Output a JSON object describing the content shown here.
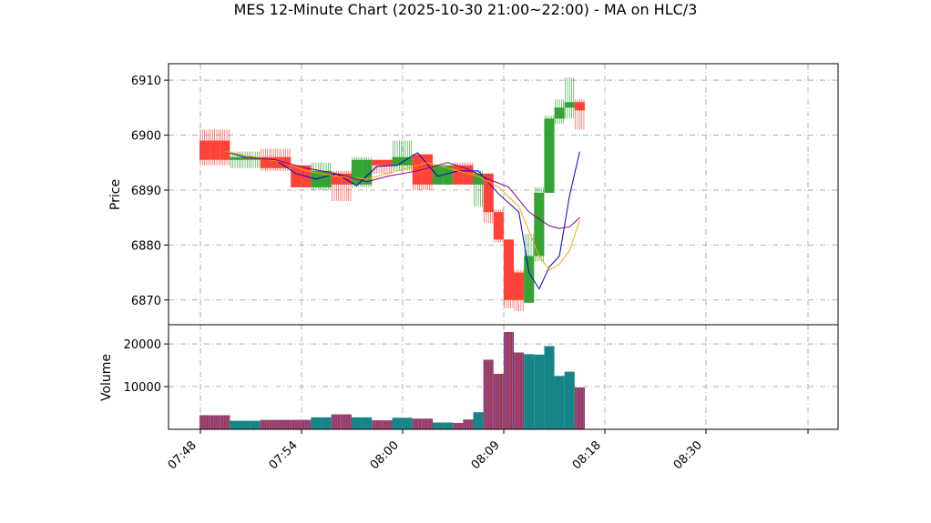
{
  "chart_data": {
    "title": "MES 12-Minute Chart (2025-10-30 21:00~22:00) - MA on HLC/3",
    "type": "candlestick",
    "x_tick_labels": [
      "07:48",
      "07:54",
      "08:00",
      "08:09",
      "08:18",
      "08:30",
      ""
    ],
    "price_panel": {
      "ylabel": "Price",
      "ylim": [
        6865.5,
        6913
      ],
      "yticks": [
        6870,
        6880,
        6890,
        6900,
        6910
      ],
      "grid": true,
      "candles": [
        {
          "o": 6899.0,
          "h": 6901.0,
          "l": 6894.5,
          "c": 6895.5,
          "dir": "down"
        },
        {
          "o": 6899.0,
          "h": 6901.0,
          "l": 6894.5,
          "c": 6895.5,
          "dir": "down"
        },
        {
          "o": 6899.0,
          "h": 6901.0,
          "l": 6894.5,
          "c": 6895.5,
          "dir": "down"
        },
        {
          "o": 6896.0,
          "h": 6897.0,
          "l": 6894.0,
          "c": 6895.5,
          "dir": "up"
        },
        {
          "o": 6896.0,
          "h": 6897.0,
          "l": 6894.0,
          "c": 6895.5,
          "dir": "up"
        },
        {
          "o": 6896.0,
          "h": 6897.0,
          "l": 6894.0,
          "c": 6895.5,
          "dir": "up"
        },
        {
          "o": 6896.0,
          "h": 6897.5,
          "l": 6893.5,
          "c": 6894.0,
          "dir": "down"
        },
        {
          "o": 6896.0,
          "h": 6897.5,
          "l": 6893.5,
          "c": 6894.0,
          "dir": "down"
        },
        {
          "o": 6896.0,
          "h": 6897.5,
          "l": 6893.5,
          "c": 6894.0,
          "dir": "down"
        },
        {
          "o": 6894.5,
          "h": 6894.5,
          "l": 6890.5,
          "c": 6890.5,
          "dir": "down"
        },
        {
          "o": 6894.5,
          "h": 6894.5,
          "l": 6890.5,
          "c": 6890.5,
          "dir": "down"
        },
        {
          "o": 6890.5,
          "h": 6895.0,
          "l": 6890.0,
          "c": 6893.5,
          "dir": "up"
        },
        {
          "o": 6890.5,
          "h": 6895.0,
          "l": 6890.0,
          "c": 6893.5,
          "dir": "up"
        },
        {
          "o": 6893.0,
          "h": 6893.5,
          "l": 6888.0,
          "c": 6891.0,
          "dir": "down"
        },
        {
          "o": 6893.0,
          "h": 6893.5,
          "l": 6888.0,
          "c": 6891.0,
          "dir": "down"
        },
        {
          "o": 6891.0,
          "h": 6896.0,
          "l": 6890.5,
          "c": 6895.5,
          "dir": "up"
        },
        {
          "o": 6891.0,
          "h": 6896.0,
          "l": 6890.5,
          "c": 6895.5,
          "dir": "up"
        },
        {
          "o": 6895.5,
          "h": 6895.5,
          "l": 6893.0,
          "c": 6894.5,
          "dir": "down"
        },
        {
          "o": 6895.5,
          "h": 6895.5,
          "l": 6893.0,
          "c": 6894.5,
          "dir": "down"
        },
        {
          "o": 6894.5,
          "h": 6899.0,
          "l": 6893.5,
          "c": 6896.0,
          "dir": "up"
        },
        {
          "o": 6894.5,
          "h": 6899.0,
          "l": 6893.5,
          "c": 6896.0,
          "dir": "up"
        },
        {
          "o": 6896.5,
          "h": 6896.5,
          "l": 6890.0,
          "c": 6891.0,
          "dir": "down"
        },
        {
          "o": 6896.5,
          "h": 6896.5,
          "l": 6890.0,
          "c": 6891.0,
          "dir": "down"
        },
        {
          "o": 6891.0,
          "h": 6894.5,
          "l": 6891.0,
          "c": 6894.5,
          "dir": "up"
        },
        {
          "o": 6891.0,
          "h": 6894.5,
          "l": 6891.0,
          "c": 6894.5,
          "dir": "up"
        },
        {
          "o": 6894.5,
          "h": 6895.0,
          "l": 6891.0,
          "c": 6891.0,
          "dir": "down"
        },
        {
          "o": 6894.5,
          "h": 6895.0,
          "l": 6891.0,
          "c": 6891.0,
          "dir": "down"
        },
        {
          "o": 6891.0,
          "h": 6893.5,
          "l": 6887.0,
          "c": 6893.0,
          "dir": "up"
        },
        {
          "o": 6893.0,
          "h": 6893.0,
          "l": 6884.0,
          "c": 6886.0,
          "dir": "down"
        },
        {
          "o": 6886.0,
          "h": 6886.5,
          "l": 6880.5,
          "c": 6881.0,
          "dir": "down"
        },
        {
          "o": 6881.0,
          "h": 6881.0,
          "l": 6868.5,
          "c": 6870.0,
          "dir": "down"
        },
        {
          "o": 6875.0,
          "h": 6875.5,
          "l": 6868.0,
          "c": 6870.0,
          "dir": "down"
        },
        {
          "o": 6869.5,
          "h": 6882.0,
          "l": 6869.5,
          "c": 6878.0,
          "dir": "up"
        },
        {
          "o": 6878.0,
          "h": 6890.5,
          "l": 6877.0,
          "c": 6889.5,
          "dir": "up"
        },
        {
          "o": 6889.5,
          "h": 6903.5,
          "l": 6889.5,
          "c": 6903.0,
          "dir": "up"
        },
        {
          "o": 6903.0,
          "h": 6906.5,
          "l": 6902.0,
          "c": 6905.0,
          "dir": "up"
        },
        {
          "o": 6905.0,
          "h": 6910.5,
          "l": 6903.0,
          "c": 6906.0,
          "dir": "up"
        },
        {
          "o": 6906.0,
          "h": 6906.5,
          "l": 6901.0,
          "c": 6904.5,
          "dir": "down"
        }
      ],
      "ma_lines": [
        {
          "color": "#0000cc",
          "values": [
            [
              2,
              6897.0
            ],
            [
              4,
              6896.0
            ],
            [
              7,
              6895.5
            ],
            [
              9,
              6893.0
            ],
            [
              11,
              6892.0
            ],
            [
              13,
              6893.0
            ],
            [
              15,
              6890.8
            ],
            [
              17,
              6894.3
            ],
            [
              19,
              6894.5
            ],
            [
              21,
              6896.8
            ],
            [
              23,
              6892.5
            ],
            [
              25,
              6893.5
            ],
            [
              27,
              6893.5
            ],
            [
              29,
              6889.3
            ],
            [
              31,
              6886.0
            ],
            [
              32,
              6875.0
            ],
            [
              33,
              6872.0
            ],
            [
              34,
              6876.0
            ],
            [
              35,
              6878.0
            ],
            [
              36,
              6889.0
            ],
            [
              37,
              6897.0
            ]
          ]
        },
        {
          "color": "#ffa500",
          "values": [
            [
              2,
              6897.0
            ],
            [
              5,
              6896.0
            ],
            [
              8,
              6895.0
            ],
            [
              10,
              6893.5
            ],
            [
              13,
              6892.5
            ],
            [
              16,
              6892.0
            ],
            [
              19,
              6893.5
            ],
            [
              22,
              6895.0
            ],
            [
              25,
              6893.5
            ],
            [
              27,
              6892.5
            ],
            [
              29,
              6890.5
            ],
            [
              31,
              6887.0
            ],
            [
              33,
              6878.0
            ],
            [
              34,
              6875.5
            ],
            [
              35,
              6876.5
            ],
            [
              36,
              6879.0
            ],
            [
              37,
              6884.5
            ]
          ]
        },
        {
          "color": "#800080",
          "values": [
            [
              4,
              6896.0
            ],
            [
              7,
              6895.5
            ],
            [
              10,
              6894.0
            ],
            [
              13,
              6893.0
            ],
            [
              16,
              6891.5
            ],
            [
              18,
              6892.5
            ],
            [
              21,
              6893.5
            ],
            [
              24,
              6895.0
            ],
            [
              26,
              6893.8
            ],
            [
              28,
              6892.0
            ],
            [
              30,
              6890.5
            ],
            [
              32,
              6886.0
            ],
            [
              34,
              6883.5
            ],
            [
              35,
              6883.0
            ],
            [
              36,
              6883.3
            ],
            [
              37,
              6885.0
            ]
          ]
        }
      ]
    },
    "volume_panel": {
      "ylabel": "Volume",
      "ylim": [
        0,
        24500
      ],
      "yticks": [
        10000,
        20000
      ],
      "grid": true,
      "bars": [
        {
          "v": 3300,
          "color": "down"
        },
        {
          "v": 3300,
          "color": "down"
        },
        {
          "v": 3300,
          "color": "down"
        },
        {
          "v": 2000,
          "color": "up"
        },
        {
          "v": 2000,
          "color": "up"
        },
        {
          "v": 2000,
          "color": "up"
        },
        {
          "v": 2200,
          "color": "down"
        },
        {
          "v": 2200,
          "color": "down"
        },
        {
          "v": 2200,
          "color": "down"
        },
        {
          "v": 2200,
          "color": "down"
        },
        {
          "v": 2200,
          "color": "down"
        },
        {
          "v": 2800,
          "color": "up"
        },
        {
          "v": 2800,
          "color": "up"
        },
        {
          "v": 3500,
          "color": "down"
        },
        {
          "v": 3500,
          "color": "down"
        },
        {
          "v": 2800,
          "color": "up"
        },
        {
          "v": 2800,
          "color": "up"
        },
        {
          "v": 2100,
          "color": "down"
        },
        {
          "v": 2100,
          "color": "down"
        },
        {
          "v": 2700,
          "color": "up"
        },
        {
          "v": 2700,
          "color": "up"
        },
        {
          "v": 2500,
          "color": "down"
        },
        {
          "v": 2500,
          "color": "down"
        },
        {
          "v": 1600,
          "color": "up"
        },
        {
          "v": 1600,
          "color": "up"
        },
        {
          "v": 1500,
          "color": "down"
        },
        {
          "v": 2300,
          "color": "down"
        },
        {
          "v": 4000,
          "color": "up"
        },
        {
          "v": 16300,
          "color": "down"
        },
        {
          "v": 13000,
          "color": "down"
        },
        {
          "v": 22800,
          "color": "down"
        },
        {
          "v": 18000,
          "color": "down"
        },
        {
          "v": 17600,
          "color": "up"
        },
        {
          "v": 17500,
          "color": "up"
        },
        {
          "v": 19500,
          "color": "up"
        },
        {
          "v": 12500,
          "color": "up"
        },
        {
          "v": 13500,
          "color": "up"
        },
        {
          "v": 9800,
          "color": "down"
        }
      ]
    },
    "colors": {
      "up": "#2ca02c",
      "down": "#ff3b30",
      "volume_up": "#138a78",
      "volume_down": "#a8324a",
      "volume_stripe_up": "#1f77b4",
      "volume_stripe_down": "#6b6bd6",
      "grid": "#b0b0b0"
    }
  }
}
